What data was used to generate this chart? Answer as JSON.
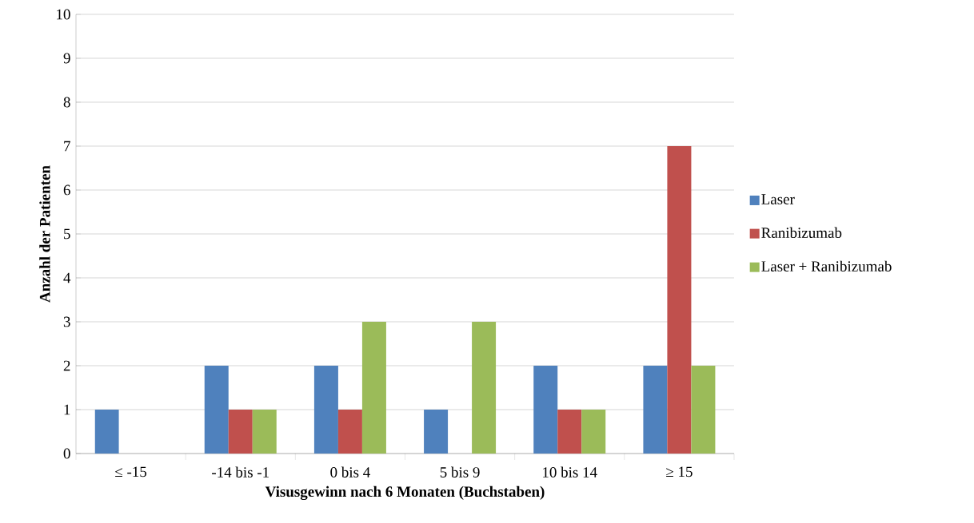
{
  "chart_data": {
    "type": "bar",
    "xlabel": "Visusgewinn nach 6 Monaten (Buchstaben)",
    "ylabel": "Anzahl der Patienten",
    "categories": [
      "≤ -15",
      "-14 bis -1",
      "0 bis 4",
      "5 bis 9",
      "10 bis 14",
      "≥ 15"
    ],
    "series": [
      {
        "name": "Laser",
        "color": "#4f81bd",
        "values": [
          1,
          2,
          2,
          1,
          2,
          2
        ]
      },
      {
        "name": "Ranibizumab",
        "color": "#c0504d",
        "values": [
          0,
          1,
          1,
          0,
          1,
          7
        ]
      },
      {
        "name": "Laser + Ranibizumab",
        "color": "#9bbb59",
        "values": [
          0,
          1,
          3,
          3,
          1,
          2
        ]
      }
    ],
    "ylim": [
      0,
      10
    ],
    "yticks": [
      0,
      1,
      2,
      3,
      4,
      5,
      6,
      7,
      8,
      9,
      10
    ],
    "grid": "y",
    "legend": "right"
  }
}
